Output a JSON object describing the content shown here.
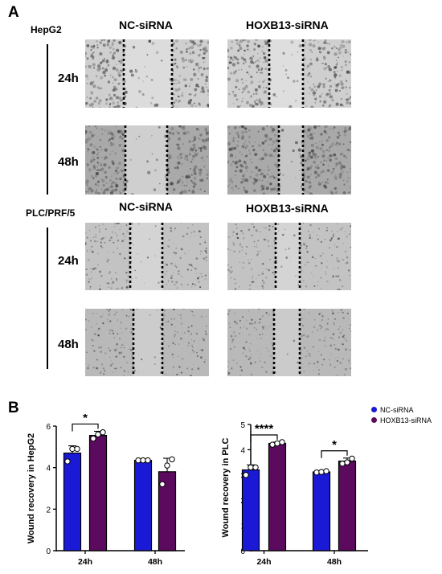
{
  "panel_a": {
    "label": "A",
    "top_block": {
      "cell_line": "HepG2",
      "columns": [
        "NC-siRNA",
        "HOXB13-siRNA"
      ],
      "rows": [
        "24h",
        "48h"
      ]
    },
    "bottom_block": {
      "cell_line": "PLC/PRF/5",
      "columns": [
        "NC-siRNA",
        "HOXB13-siRNA"
      ],
      "rows": [
        "24h",
        "48h"
      ]
    }
  },
  "panel_b": {
    "label": "B",
    "legend": [
      {
        "name": "NC-siRNA",
        "color": "#1a1ad6"
      },
      {
        "name": "HOXB13-siRNA",
        "color": "#5b0a5e"
      }
    ]
  },
  "chart_data": [
    {
      "type": "bar",
      "ylabel": "Wound recovery in HepG2",
      "xlabel": "",
      "categories": [
        "24h",
        "48h"
      ],
      "ylim": [
        0,
        6
      ],
      "yticks": [
        0,
        2,
        4,
        6
      ],
      "series": [
        {
          "name": "NC-siRNA",
          "values": [
            4.7,
            4.35
          ],
          "errors": [
            0.35,
            0.05
          ],
          "points": [
            [
              4.3,
              4.9,
              4.9
            ],
            [
              4.35,
              4.35,
              4.35
            ]
          ]
        },
        {
          "name": "HOXB13-siRNA",
          "values": [
            5.55,
            3.8
          ],
          "errors": [
            0.2,
            0.65
          ],
          "points": [
            [
              5.4,
              5.6,
              5.7
            ],
            [
              3.2,
              4.1,
              4.4
            ]
          ]
        }
      ],
      "significance": [
        {
          "category": "24h",
          "label": "*"
        }
      ]
    },
    {
      "type": "bar",
      "ylabel": "Wound recovery in PLC",
      "xlabel": "",
      "categories": [
        "24h",
        "48h"
      ],
      "ylim": [
        0,
        5
      ],
      "yticks": [
        0,
        1,
        2,
        3,
        4,
        5
      ],
      "series": [
        {
          "name": "NC-siRNA",
          "values": [
            3.2,
            3.12
          ],
          "errors": [
            0.2,
            0.04
          ],
          "points": [
            [
              3.0,
              3.3,
              3.3
            ],
            [
              3.1,
              3.12,
              3.15
            ]
          ]
        },
        {
          "name": "HOXB13-siRNA",
          "values": [
            4.25,
            3.55
          ],
          "errors": [
            0.05,
            0.12
          ],
          "points": [
            [
              4.2,
              4.25,
              4.3
            ],
            [
              3.45,
              3.5,
              3.65
            ]
          ]
        }
      ],
      "significance": [
        {
          "category": "24h",
          "label": "****"
        },
        {
          "category": "48h",
          "label": "*"
        }
      ]
    }
  ]
}
